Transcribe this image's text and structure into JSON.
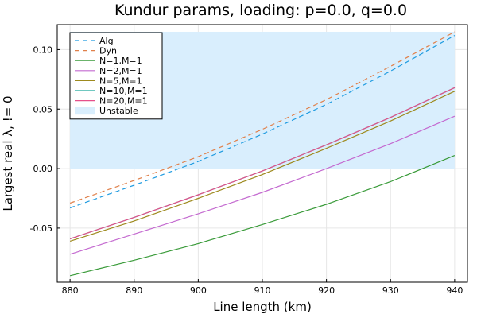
{
  "chart_data": {
    "type": "line",
    "title": "Kundur params, loading: p=0.0, q=0.0",
    "xlabel": "Line length (km)",
    "ylabel": "Largest real λ, != 0",
    "xlim": [
      878,
      942
    ],
    "ylim": [
      -0.0955,
      0.121
    ],
    "xticks": [
      880,
      890,
      900,
      910,
      920,
      930,
      940
    ],
    "yticks": [
      -0.05,
      0.0,
      0.05,
      0.1
    ],
    "ytick_labels": [
      "-0.05",
      "0.00",
      "0.05",
      "0.10"
    ],
    "grid": true,
    "legend_position": "top-left",
    "x": [
      880,
      890,
      900,
      910,
      920,
      930,
      940
    ],
    "unstable_region": {
      "label": "Unstable",
      "xrange": [
        880,
        940
      ],
      "yrange": [
        0.0,
        0.115
      ],
      "color": "#d9eefd"
    },
    "series": [
      {
        "name": "Alg",
        "color": "#1f9be0",
        "dash": true,
        "values": [
          -0.033,
          -0.014,
          0.006,
          0.029,
          0.054,
          0.082,
          0.112
        ]
      },
      {
        "name": "Dyn",
        "color": "#e0804a",
        "dash": true,
        "values": [
          -0.029,
          -0.01,
          0.01,
          0.033,
          0.058,
          0.086,
          0.115
        ]
      },
      {
        "name": "N=1,M=1",
        "color": "#3a9b3a",
        "dash": false,
        "values": [
          -0.09,
          -0.077,
          -0.063,
          -0.047,
          -0.03,
          -0.011,
          0.011
        ]
      },
      {
        "name": "N=2,M=1",
        "color": "#c46ad0",
        "dash": false,
        "values": [
          -0.072,
          -0.055,
          -0.038,
          -0.02,
          0.0,
          0.021,
          0.044
        ]
      },
      {
        "name": "N=5,M=1",
        "color": "#9e8a1e",
        "dash": false,
        "values": [
          -0.061,
          -0.044,
          -0.025,
          -0.005,
          0.017,
          0.04,
          0.065
        ]
      },
      {
        "name": "N=10,M=1",
        "color": "#1aa89a",
        "dash": false,
        "values": [
          -0.059,
          -0.041,
          -0.022,
          -0.002,
          0.02,
          0.043,
          0.068
        ]
      },
      {
        "name": "N=20,M=1",
        "color": "#e6508a",
        "dash": false,
        "values": [
          -0.059,
          -0.041,
          -0.022,
          -0.002,
          0.02,
          0.043,
          0.068
        ]
      }
    ]
  }
}
